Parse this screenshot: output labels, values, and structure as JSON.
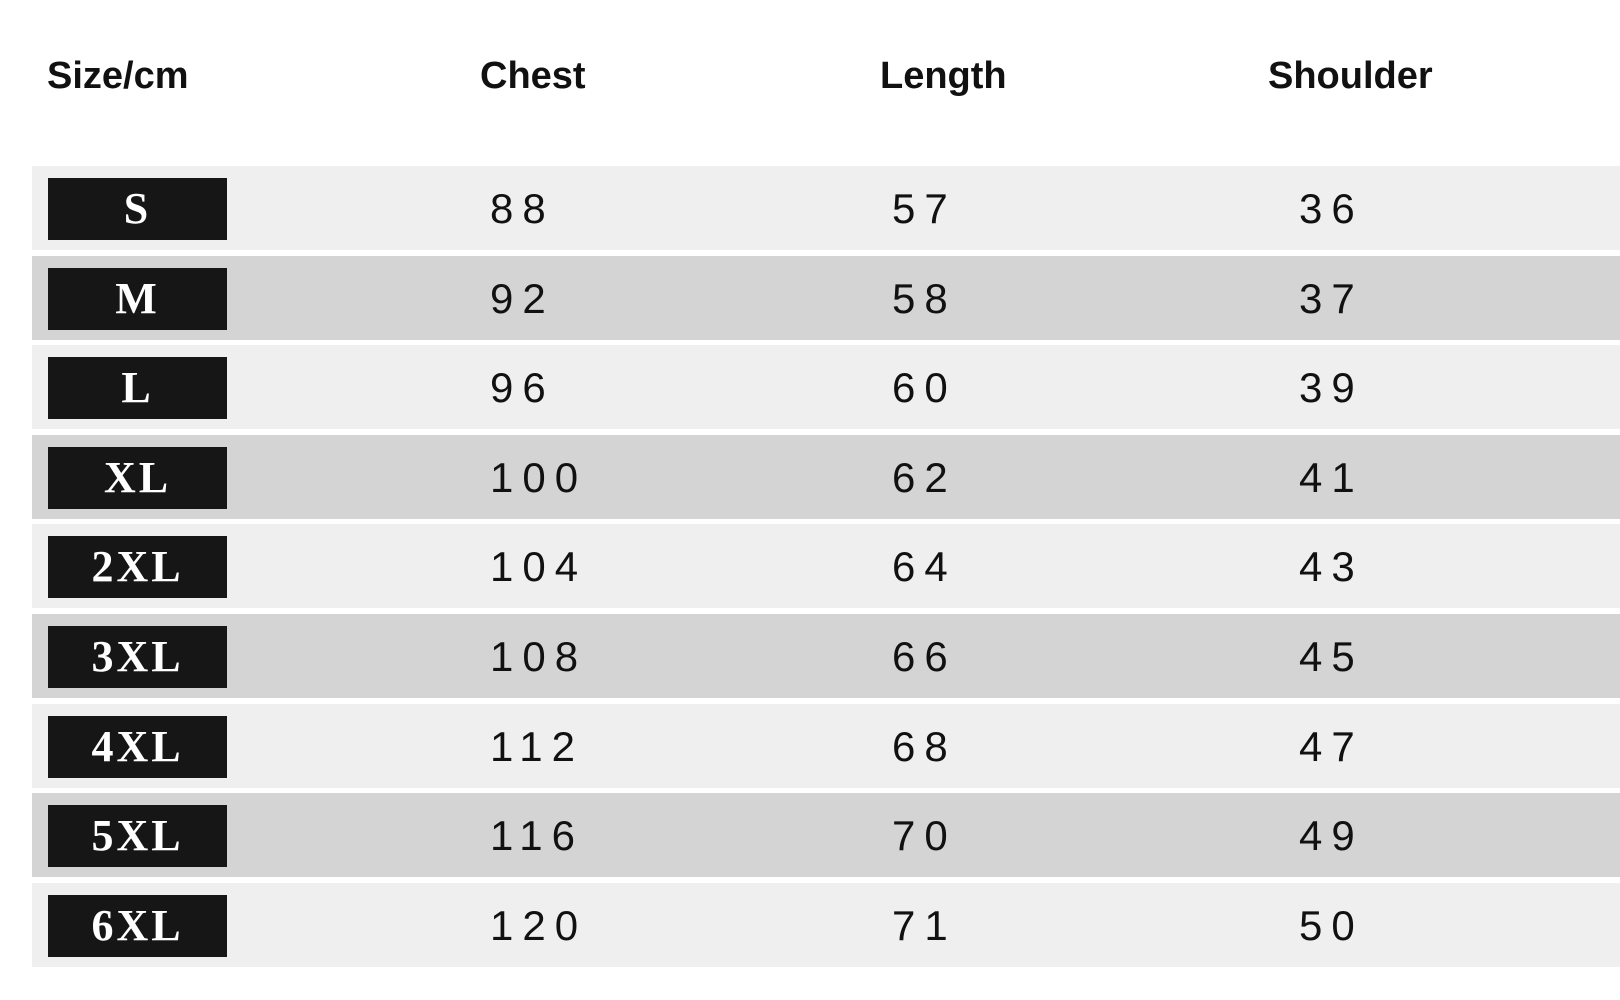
{
  "headers": [
    "Size/cm",
    "Chest",
    "Length",
    "Shoulder"
  ],
  "rows": [
    {
      "size": "S",
      "chest": "88",
      "length": "57",
      "shoulder": "36"
    },
    {
      "size": "M",
      "chest": "92",
      "length": "58",
      "shoulder": "37"
    },
    {
      "size": "L",
      "chest": "96",
      "length": "60",
      "shoulder": "39"
    },
    {
      "size": "XL",
      "chest": "100",
      "length": "62",
      "shoulder": "41"
    },
    {
      "size": "2XL",
      "chest": "104",
      "length": "64",
      "shoulder": "43"
    },
    {
      "size": "3XL",
      "chest": "108",
      "length": "66",
      "shoulder": "45"
    },
    {
      "size": "4XL",
      "chest": "112",
      "length": "68",
      "shoulder": "47"
    },
    {
      "size": "5XL",
      "chest": "116",
      "length": "70",
      "shoulder": "49"
    },
    {
      "size": "6XL",
      "chest": "120",
      "length": "71",
      "shoulder": "50"
    }
  ],
  "colors": {
    "row_light": "#efefef",
    "row_dark": "#d4d4d4",
    "label_bg": "#161616"
  }
}
